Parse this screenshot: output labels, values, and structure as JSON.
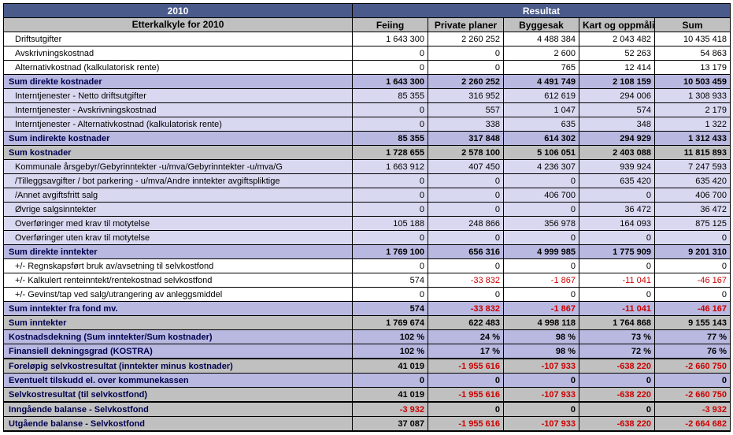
{
  "header": {
    "year": "2010",
    "result": "Resultat",
    "subtitle": "Etterkalkyle for 2010",
    "cols": [
      "Feiing",
      "Private planer",
      "Byggesak",
      "Kart og oppmåling",
      "Sum"
    ]
  },
  "rows": [
    {
      "style": "row-white",
      "label": "Driftsutgifter",
      "vals": [
        "1 643 300",
        "2 260 252",
        "4 488 384",
        "2 043 482",
        "10 435 418"
      ]
    },
    {
      "style": "row-white",
      "label": "Avskrivningskostnad",
      "vals": [
        "0",
        "0",
        "2 600",
        "52 263",
        "54 863"
      ]
    },
    {
      "style": "row-white",
      "label": "Alternativkostnad (kalkulatorisk rente)",
      "vals": [
        "0",
        "0",
        "765",
        "12 414",
        "13 179"
      ]
    },
    {
      "style": "row-blue",
      "bold": true,
      "label": "Sum direkte kostnader",
      "vals": [
        "1 643 300",
        "2 260 252",
        "4 491 749",
        "2 108 159",
        "10 503 459"
      ]
    },
    {
      "style": "row-lav",
      "label": "Interntjenester - Netto driftsutgifter",
      "vals": [
        "85 355",
        "316 952",
        "612 619",
        "294 006",
        "1 308 933"
      ]
    },
    {
      "style": "row-lav",
      "label": "Interntjenester - Avskrivningskostnad",
      "vals": [
        "0",
        "557",
        "1 047",
        "574",
        "2 179"
      ]
    },
    {
      "style": "row-lav",
      "label": "Interntjenester - Alternativkostnad (kalkulatorisk rente)",
      "vals": [
        "0",
        "338",
        "635",
        "348",
        "1 322"
      ]
    },
    {
      "style": "row-blue",
      "bold": true,
      "label": "Sum indirekte kostnader",
      "vals": [
        "85 355",
        "317 848",
        "614 302",
        "294 929",
        "1 312 433"
      ]
    },
    {
      "style": "row-gray",
      "bold": true,
      "label": "Sum kostnader",
      "vals": [
        "1 728 655",
        "2 578 100",
        "5 106 051",
        "2 403 088",
        "11 815 893"
      ]
    },
    {
      "style": "row-lav",
      "label": "Kommunale årsgebyr/Gebyrinntekter -u/mva/Gebyrinntekter -u/mva/G",
      "vals": [
        "1 663 912",
        "407 450",
        "4 236 307",
        "939 924",
        "7 247 593"
      ]
    },
    {
      "style": "row-lav",
      "label": "/Tilleggsavgifter / bot parkering - u/mva/Andre inntekter avgiftspliktige",
      "vals": [
        "0",
        "0",
        "0",
        "635 420",
        "635 420"
      ]
    },
    {
      "style": "row-lav",
      "label": "/Annet avgiftsfritt salg",
      "vals": [
        "0",
        "0",
        "406 700",
        "0",
        "406 700"
      ]
    },
    {
      "style": "row-lav",
      "label": "Øvrige salgsinntekter",
      "vals": [
        "0",
        "0",
        "0",
        "36 472",
        "36 472"
      ]
    },
    {
      "style": "row-lav",
      "label": "Overføringer med krav til motytelse",
      "vals": [
        "105 188",
        "248 866",
        "356 978",
        "164 093",
        "875 125"
      ]
    },
    {
      "style": "row-lav",
      "label": "Overføringer uten krav til motytelse",
      "vals": [
        "0",
        "0",
        "0",
        "0",
        "0"
      ]
    },
    {
      "style": "row-blue",
      "bold": true,
      "label": "Sum direkte inntekter",
      "vals": [
        "1 769 100",
        "656 316",
        "4 999 985",
        "1 775 909",
        "9 201 310"
      ]
    },
    {
      "style": "row-white",
      "label": "+/- Regnskapsført bruk av/avsetning til selvkostfond",
      "vals": [
        "0",
        "0",
        "0",
        "0",
        "0"
      ]
    },
    {
      "style": "row-white",
      "label": "+/- Kalkulert renteinntekt/rentekostnad selvkostfond",
      "vals": [
        "574",
        "-33 832",
        "-1 867",
        "-11 041",
        "-46 167"
      ],
      "neg": [
        false,
        true,
        true,
        true,
        true
      ]
    },
    {
      "style": "row-white",
      "label": "+/- Gevinst/tap ved salg/utrangering av anleggsmiddel",
      "vals": [
        "0",
        "0",
        "0",
        "0",
        "0"
      ]
    },
    {
      "style": "row-blue",
      "bold": true,
      "label": "Sum inntekter fra fond mv.",
      "vals": [
        "574",
        "-33 832",
        "-1 867",
        "-11 041",
        "-46 167"
      ],
      "neg": [
        false,
        true,
        true,
        true,
        true
      ]
    },
    {
      "style": "row-gray",
      "bold": true,
      "label": "Sum inntekter",
      "vals": [
        "1 769 674",
        "622 483",
        "4 998 118",
        "1 764 868",
        "9 155 143"
      ]
    },
    {
      "style": "row-blue",
      "bold": true,
      "label": "Kostnadsdekning (Sum inntekter/Sum kostnader)",
      "vals": [
        "102 %",
        "24 %",
        "98 %",
        "73 %",
        "77 %"
      ]
    },
    {
      "style": "row-blue",
      "bold": true,
      "label": "Finansiell dekningsgrad (KOSTRA)",
      "vals": [
        "102 %",
        "17 %",
        "98 %",
        "72 %",
        "76 %"
      ]
    },
    {
      "style": "row-gray",
      "bold": true,
      "thickTop": true,
      "label": "Foreløpig selvkostresultat (inntekter minus kostnader)",
      "vals": [
        "41 019",
        "-1 955 616",
        "-107 933",
        "-638 220",
        "-2 660 750"
      ],
      "neg": [
        false,
        true,
        true,
        true,
        true
      ]
    },
    {
      "style": "row-blue",
      "bold": true,
      "label": "Eventuelt tilskudd el. over kommunekassen",
      "vals": [
        "0",
        "0",
        "0",
        "0",
        "0"
      ]
    },
    {
      "style": "row-gray",
      "bold": true,
      "thickBot": true,
      "label": "Selvkostresultat (til selvkostfond)",
      "vals": [
        "41 019",
        "-1 955 616",
        "-107 933",
        "-638 220",
        "-2 660 750"
      ],
      "neg": [
        false,
        true,
        true,
        true,
        true
      ]
    },
    {
      "style": "row-gray",
      "bold": true,
      "label": "Inngående balanse - Selvkostfond",
      "vals": [
        "-3 932",
        "0",
        "0",
        "0",
        "-3 932"
      ],
      "neg": [
        true,
        false,
        false,
        false,
        true
      ]
    },
    {
      "style": "row-gray",
      "bold": true,
      "thickBot": true,
      "label": "Utgående balanse - Selvkostfond",
      "vals": [
        "37 087",
        "-1 955 616",
        "-107 933",
        "-638 220",
        "-2 664 682"
      ],
      "neg": [
        false,
        true,
        true,
        true,
        true
      ]
    }
  ]
}
